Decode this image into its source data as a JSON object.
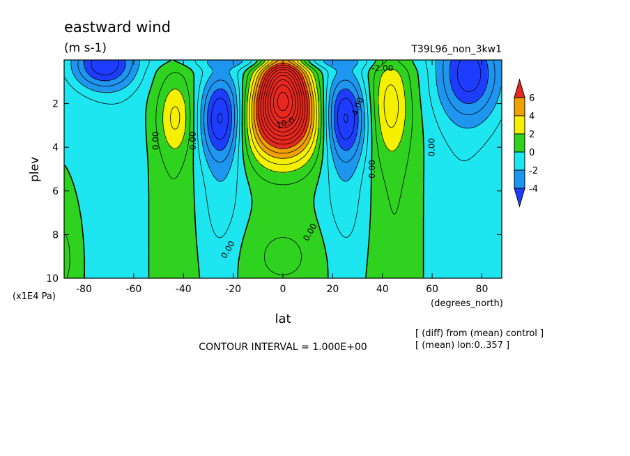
{
  "chart_data": {
    "type": "heatmap",
    "title": "eastward wind",
    "units": "(m s-1)",
    "run_name": "T39L96_non_3kw1",
    "xlabel": "lat",
    "x_units": "(degrees_north)",
    "ylabel": "plev",
    "y_units": "(x1E4 Pa)",
    "xlim": [
      -88,
      88
    ],
    "ylim": [
      0,
      10
    ],
    "y_inverted": true,
    "x_ticks": [
      -80,
      -60,
      -40,
      -20,
      0,
      20,
      40,
      60,
      80
    ],
    "x_tick_labels": [
      "-80",
      "-60",
      "-40",
      "-20",
      "0",
      "20",
      "40",
      "60",
      "80"
    ],
    "y_ticks": [
      2,
      4,
      6,
      8,
      10
    ],
    "y_tick_labels": [
      "2",
      "4",
      "6",
      "8",
      "10"
    ],
    "colorbar": {
      "labels": [
        "6",
        "4",
        "2",
        "0",
        "-2",
        "-4"
      ],
      "boundaries": [
        6,
        4,
        2,
        0,
        -2,
        -4
      ],
      "colors": [
        "#e8281e",
        "#f0a000",
        "#f5f000",
        "#2fd21e",
        "#1ee6f0",
        "#1e96f0",
        "#1e3cff"
      ]
    },
    "contour_interval_text": "CONTOUR INTERVAL = 1.000E+00",
    "contour_labels": [
      {
        "text": "0.00",
        "lat": -51,
        "plev": 3.7,
        "rot": -90
      },
      {
        "text": "0.00",
        "lat": -36,
        "plev": 3.7,
        "rot": -90
      },
      {
        "text": "0.00",
        "lat": -22,
        "plev": 8.7,
        "rot": -60
      },
      {
        "text": "0.00",
        "lat": 11,
        "plev": 7.9,
        "rot": -60
      },
      {
        "text": "0.00",
        "lat": 36,
        "plev": 5.0,
        "rot": -90
      },
      {
        "text": "0.00",
        "lat": 60,
        "plev": 4.0,
        "rot": -90
      },
      {
        "text": "10.0",
        "lat": 1,
        "plev": 2.9,
        "rot": -20
      },
      {
        "text": "-4.00",
        "lat": 30,
        "plev": 2.2,
        "rot": -70
      },
      {
        "text": "-2.00",
        "lat": 40,
        "plev": 0.4,
        "rot": 0
      }
    ],
    "notes": [
      "[ (diff) from (mean) control ]",
      "[ (mean) lon:0..357 ]"
    ],
    "features": [
      {
        "sign": "positive",
        "lat": 0,
        "plev": 1.8,
        "peak": 14
      },
      {
        "sign": "negative",
        "lat": -25,
        "plev": 2.5,
        "peak": -4.5
      },
      {
        "sign": "negative",
        "lat": 25,
        "plev": 2.5,
        "peak": -4.5
      },
      {
        "sign": "positive",
        "lat": -43,
        "plev": 2.5,
        "peak": 2.5
      },
      {
        "sign": "positive",
        "lat": 43,
        "plev": 1.8,
        "peak": 2.5
      },
      {
        "sign": "negative",
        "lat": -70,
        "plev": 0.3,
        "peak": -4.5
      },
      {
        "sign": "negative",
        "lat": 75,
        "plev": 0.6,
        "peak": -4.5
      }
    ]
  }
}
